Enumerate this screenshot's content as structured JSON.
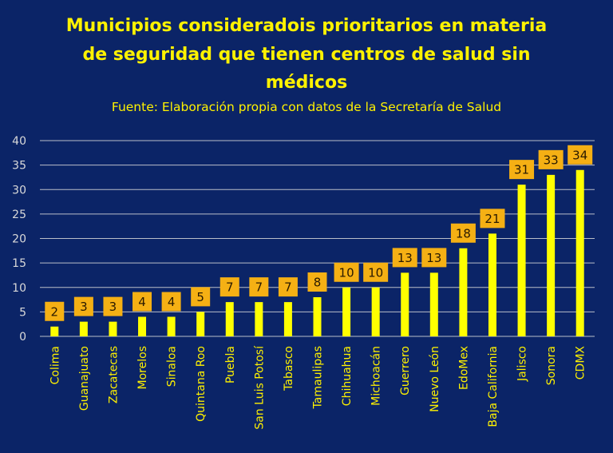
{
  "chart_data": {
    "type": "bar",
    "title_lines": [
      "Municipios consideradois prioritarios en materia",
      "de seguridad que tienen centros de salud sin",
      "médicos"
    ],
    "subtitle": "Fuente: Elaboración propia con datos de la Secretaría de Salud",
    "categories": [
      "Colima",
      "Guanajuato",
      "Zacatecas",
      "Morelos",
      "Sinaloa",
      "Quintana Roo",
      "Puebla",
      "San Luis Potosí",
      "Tabasco",
      "Tamaulipas",
      "Chihuahua",
      "Michoacán",
      "Guerrero",
      "Nuevo León",
      "EdoMex",
      "Baja California",
      "Jalisco",
      "Sonora",
      "CDMX"
    ],
    "values": [
      2,
      3,
      3,
      4,
      4,
      5,
      7,
      7,
      7,
      8,
      10,
      10,
      13,
      13,
      18,
      21,
      31,
      33,
      34
    ],
    "ylim": [
      0,
      40
    ],
    "yticks": [
      0,
      5,
      10,
      15,
      20,
      25,
      30,
      35,
      40
    ],
    "grid": true,
    "legend": "none",
    "xlabel": "",
    "ylabel": ""
  },
  "colors": {
    "background": "#0b2467",
    "bar": "#ffff00",
    "label_box": "#f5b014",
    "label_text": "#2a1a00",
    "text": "#fff200",
    "axis_text": "#d9d9d9",
    "grid": "#d9d9d9"
  }
}
